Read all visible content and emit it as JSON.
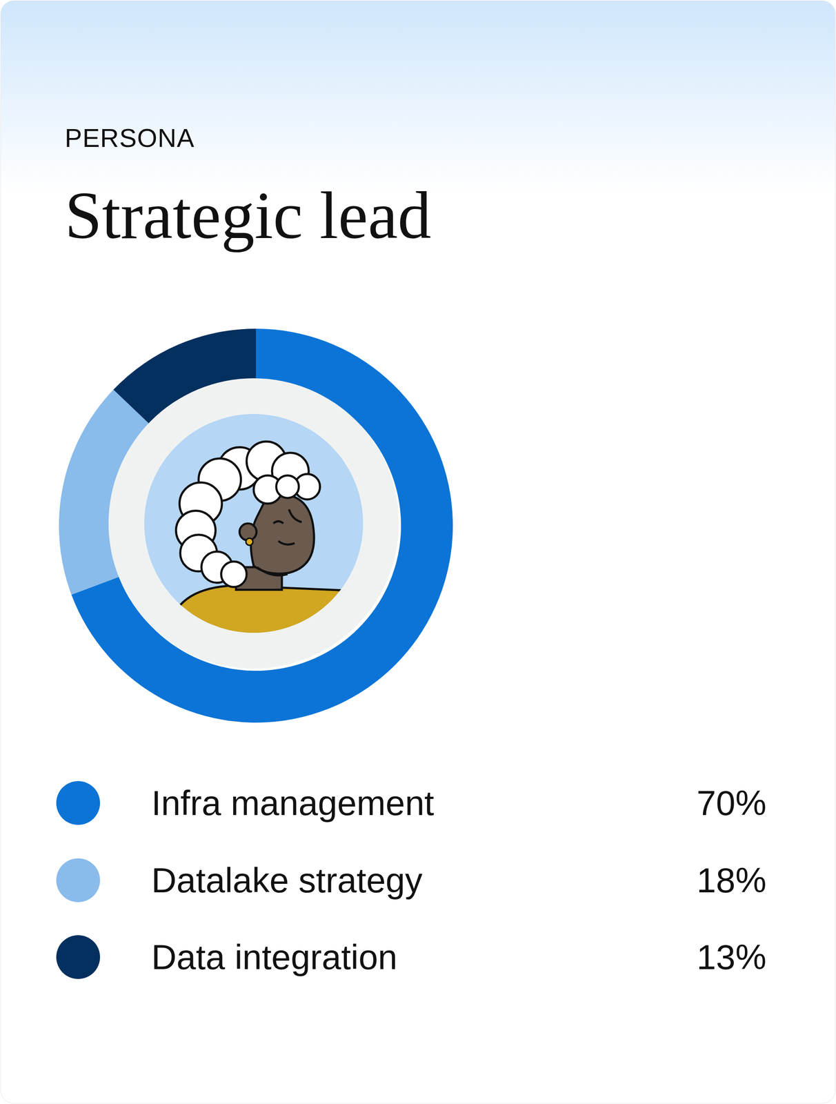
{
  "label": "PERSONA",
  "title": "Strategic lead",
  "chart_data": {
    "type": "pie",
    "categories": [
      "Infra management",
      "Datalake strategy",
      "Data integration"
    ],
    "values": [
      70,
      18,
      13
    ],
    "value_labels": [
      "70%",
      "18%",
      "13%"
    ],
    "colors": [
      "#0B74D6",
      "#89BBEB",
      "#04305F"
    ],
    "legend": "bottom",
    "data_labels": false
  }
}
